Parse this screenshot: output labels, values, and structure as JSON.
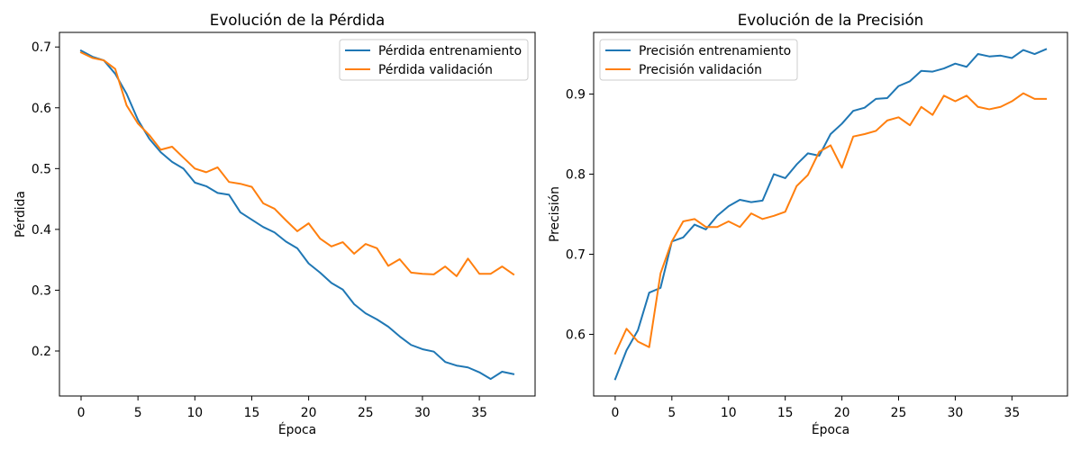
{
  "chart_data": [
    {
      "type": "line",
      "title": "Evolución de la Pérdida",
      "xlabel": "Época",
      "ylabel": "Pérdida",
      "grid": false,
      "legend": "upper right",
      "xlim": [
        -1.9,
        39.9
      ],
      "ylim": [
        0.126,
        0.724
      ],
      "xticks": [
        0,
        5,
        10,
        15,
        20,
        25,
        30,
        35
      ],
      "yticks": [
        0.2,
        0.3,
        0.4,
        0.5,
        0.6,
        0.7
      ],
      "x": [
        0,
        1,
        2,
        3,
        4,
        5,
        6,
        7,
        8,
        9,
        10,
        11,
        12,
        13,
        14,
        15,
        16,
        17,
        18,
        19,
        20,
        21,
        22,
        23,
        24,
        25,
        26,
        27,
        28,
        29,
        30,
        31,
        32,
        33,
        34,
        35,
        36,
        37,
        38
      ],
      "series": [
        {
          "name": "Pérdida entrenamiento",
          "color": "#1f77b4",
          "values": [
            0.694,
            0.684,
            0.678,
            0.656,
            0.623,
            0.58,
            0.549,
            0.527,
            0.511,
            0.5,
            0.477,
            0.471,
            0.46,
            0.457,
            0.428,
            0.416,
            0.404,
            0.395,
            0.38,
            0.369,
            0.344,
            0.329,
            0.312,
            0.301,
            0.277,
            0.262,
            0.252,
            0.24,
            0.224,
            0.21,
            0.203,
            0.199,
            0.182,
            0.176,
            0.173,
            0.165,
            0.154,
            0.166,
            0.162
          ]
        },
        {
          "name": "Pérdida validación",
          "color": "#ff7f0e",
          "values": [
            0.691,
            0.682,
            0.678,
            0.664,
            0.604,
            0.574,
            0.555,
            0.531,
            0.536,
            0.518,
            0.5,
            0.494,
            0.502,
            0.478,
            0.475,
            0.47,
            0.443,
            0.434,
            0.415,
            0.397,
            0.41,
            0.385,
            0.372,
            0.379,
            0.36,
            0.376,
            0.369,
            0.34,
            0.351,
            0.329,
            0.327,
            0.326,
            0.339,
            0.323,
            0.352,
            0.327,
            0.327,
            0.339,
            0.326
          ]
        }
      ]
    },
    {
      "type": "line",
      "title": "Evolución de la Precisión",
      "xlabel": "Época",
      "ylabel": "Precisión",
      "grid": false,
      "legend": "upper left",
      "xlim": [
        -1.9,
        39.9
      ],
      "ylim": [
        0.523,
        0.977
      ],
      "xticks": [
        0,
        5,
        10,
        15,
        20,
        25,
        30,
        35
      ],
      "yticks": [
        0.6,
        0.7,
        0.8,
        0.9
      ],
      "x": [
        0,
        1,
        2,
        3,
        4,
        5,
        6,
        7,
        8,
        9,
        10,
        11,
        12,
        13,
        14,
        15,
        16,
        17,
        18,
        19,
        20,
        21,
        22,
        23,
        24,
        25,
        26,
        27,
        28,
        29,
        30,
        31,
        32,
        33,
        34,
        35,
        36,
        37,
        38
      ],
      "series": [
        {
          "name": "Precisión entrenamiento",
          "color": "#1f77b4",
          "values": [
            0.544,
            0.58,
            0.605,
            0.652,
            0.658,
            0.716,
            0.721,
            0.737,
            0.731,
            0.748,
            0.76,
            0.768,
            0.765,
            0.767,
            0.8,
            0.795,
            0.812,
            0.826,
            0.823,
            0.85,
            0.863,
            0.879,
            0.883,
            0.894,
            0.895,
            0.91,
            0.916,
            0.929,
            0.928,
            0.932,
            0.938,
            0.934,
            0.95,
            0.947,
            0.948,
            0.945,
            0.955,
            0.95,
            0.956
          ]
        },
        {
          "name": "Precisión validación",
          "color": "#ff7f0e",
          "values": [
            0.576,
            0.607,
            0.591,
            0.584,
            0.676,
            0.716,
            0.741,
            0.744,
            0.734,
            0.734,
            0.741,
            0.734,
            0.751,
            0.744,
            0.748,
            0.753,
            0.785,
            0.799,
            0.828,
            0.836,
            0.808,
            0.847,
            0.85,
            0.854,
            0.867,
            0.871,
            0.861,
            0.884,
            0.874,
            0.898,
            0.891,
            0.898,
            0.884,
            0.881,
            0.884,
            0.891,
            0.901,
            0.894,
            0.894
          ]
        }
      ]
    }
  ]
}
